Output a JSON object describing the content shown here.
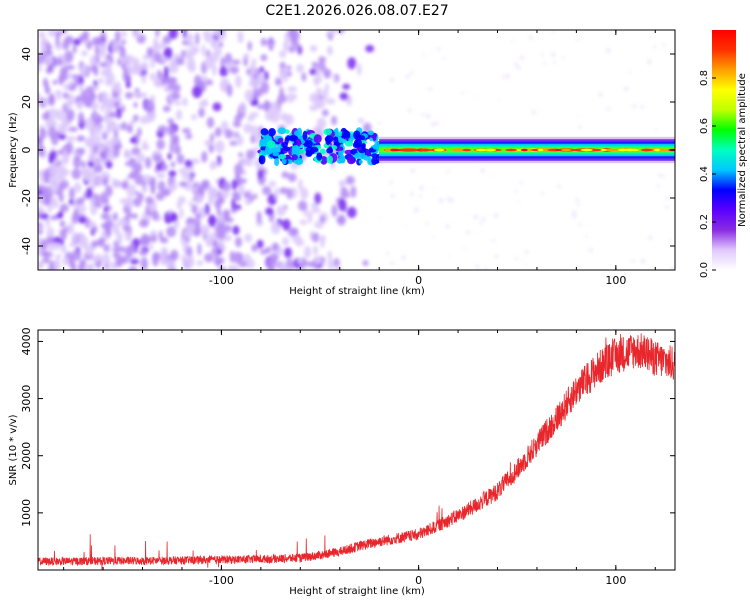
{
  "chart_data": [
    {
      "type": "heatmap",
      "title": "C2E1.2026.026.08.07.E27",
      "xlabel": "Height of straight line (km)",
      "ylabel": "Frequency (Hz)",
      "xlim": [
        -193,
        130
      ],
      "ylim": [
        -50,
        50
      ],
      "xticks": [
        -100,
        0,
        100
      ],
      "xtick_labels": [
        "-100",
        "0",
        "100"
      ],
      "yticks": [
        -40,
        -20,
        0,
        20,
        40
      ],
      "ytick_labels": [
        "-40",
        "-20",
        "0",
        "20",
        "40"
      ],
      "colorbar": {
        "label": "Normalized spectral amplitude",
        "range": [
          0,
          1
        ],
        "ticks": [
          0,
          0.2,
          0.4,
          0.6,
          0.8
        ],
        "tick_labels": [
          "0.0",
          "0.2",
          "0.4",
          "0.6",
          "0.8"
        ],
        "colormap": [
          "#ffffff",
          "#e0c8ff",
          "#8a2be2",
          "#5a00ff",
          "#0000ff",
          "#00c8ff",
          "#00ffc0",
          "#00ff00",
          "#c0ff00",
          "#ffff00",
          "#ffa000",
          "#ff3000",
          "#ff0000"
        ]
      },
      "regions": [
        {
          "name": "noise",
          "x_range": [
            -193,
            -20
          ],
          "f_range": [
            -50,
            50
          ],
          "amplitude": 0.15
        },
        {
          "name": "transition",
          "x_range": [
            -80,
            -20
          ],
          "f_range": [
            -5,
            8
          ],
          "amplitude": 0.35
        },
        {
          "name": "narrowband-carrier",
          "x_range": [
            -20,
            130
          ],
          "f_center": 0,
          "f_halfwidth": 4,
          "amplitude": 0.9
        }
      ]
    },
    {
      "type": "line",
      "title": "",
      "xlabel": "Height of straight line (km)",
      "ylabel": "SNR (10 * v/v)",
      "xlim": [
        -193,
        130
      ],
      "ylim": [
        0,
        4200
      ],
      "xticks": [
        -100,
        0,
        100
      ],
      "xtick_labels": [
        "-100",
        "0",
        "100"
      ],
      "yticks": [
        1000,
        2000,
        3000,
        4000
      ],
      "ytick_labels": [
        "1000",
        "2000",
        "3000",
        "4000"
      ],
      "series": [
        {
          "name": "SNR",
          "color": "#e8262b",
          "x": [
            -193,
            -180,
            -160,
            -140,
            -120,
            -100,
            -80,
            -60,
            -50,
            -40,
            -30,
            -20,
            -10,
            0,
            10,
            20,
            30,
            40,
            50,
            60,
            70,
            80,
            90,
            100,
            110,
            115,
            120,
            130
          ],
          "y": [
            150,
            150,
            160,
            160,
            170,
            180,
            190,
            210,
            260,
            320,
            420,
            500,
            560,
            620,
            780,
            950,
            1150,
            1380,
            1750,
            2200,
            2650,
            3150,
            3500,
            3750,
            3850,
            3800,
            3700,
            3600
          ]
        }
      ]
    }
  ]
}
